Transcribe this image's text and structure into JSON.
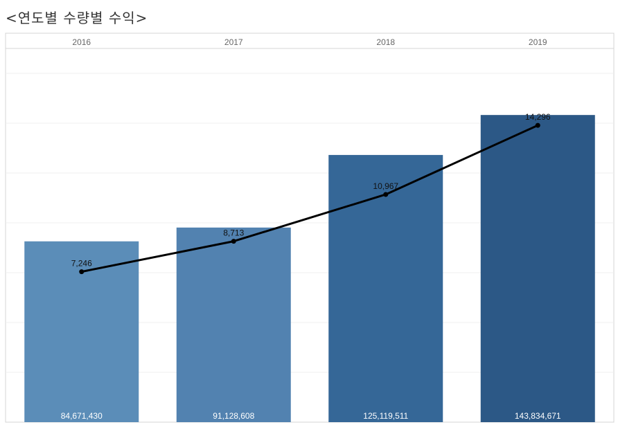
{
  "title": "<연도별 수량별 수익>",
  "colors": {
    "line": "#000000",
    "bars": [
      "#5b8db8",
      "#5282b0",
      "#356797",
      "#2c5886"
    ]
  },
  "chart_data": {
    "type": "bar",
    "title": "<연도별 수량별 수익>",
    "categories": [
      "2016",
      "2017",
      "2018",
      "2019"
    ],
    "series": [
      {
        "type": "bar",
        "values": [
          84671430,
          91128608,
          125119511,
          143834671
        ],
        "labels": [
          "84,671,430",
          "91,128,608",
          "125,119,511",
          "143,834,671"
        ]
      },
      {
        "type": "line",
        "values": [
          7246,
          8713,
          10967,
          14296
        ],
        "labels": [
          "7,246",
          "8,713",
          "10,967",
          "14,296"
        ]
      }
    ],
    "bar_ylim": [
      0,
      175000000
    ],
    "line_ylim": [
      0,
      18000
    ],
    "grid": true,
    "legend": "none"
  }
}
